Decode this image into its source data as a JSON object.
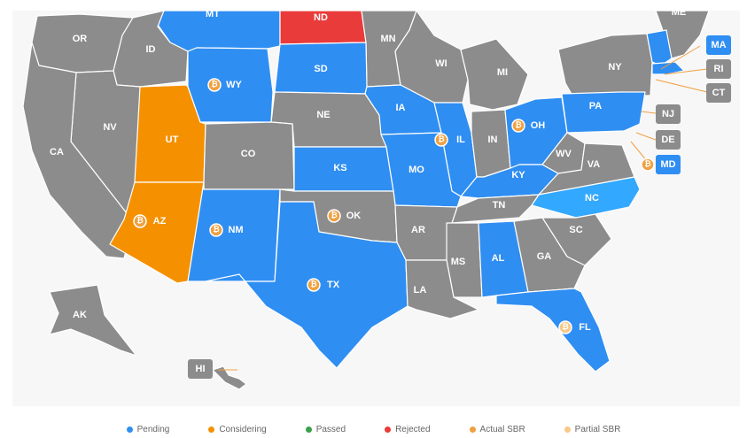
{
  "colors": {
    "pending": "#2f8ef2",
    "considering": "#f59100",
    "passed": "#3aa04a",
    "rejected": "#ea3b3b",
    "none": "#8c8c8c",
    "nc": "#33a8ff",
    "actual_sbr": "#f0a040",
    "partial_sbr": "#f7c889"
  },
  "states": [
    {
      "abbr": "MT",
      "status": "pending"
    },
    {
      "abbr": "ND",
      "status": "rejected"
    },
    {
      "abbr": "OR",
      "status": "none"
    },
    {
      "abbr": "ID",
      "status": "none"
    },
    {
      "abbr": "MN",
      "status": "none"
    },
    {
      "abbr": "WI",
      "status": "none"
    },
    {
      "abbr": "MI",
      "status": "none"
    },
    {
      "abbr": "NY",
      "status": "none"
    },
    {
      "abbr": "WY",
      "status": "pending",
      "sbr": "actual"
    },
    {
      "abbr": "SD",
      "status": "pending"
    },
    {
      "abbr": "NV",
      "status": "none"
    },
    {
      "abbr": "UT",
      "status": "considering"
    },
    {
      "abbr": "NE",
      "status": "none"
    },
    {
      "abbr": "IA",
      "status": "pending"
    },
    {
      "abbr": "IL",
      "status": "pending",
      "sbr": "actual"
    },
    {
      "abbr": "IN",
      "status": "none"
    },
    {
      "abbr": "OH",
      "status": "pending",
      "sbr": "actual"
    },
    {
      "abbr": "PA",
      "status": "pending"
    },
    {
      "abbr": "CA",
      "status": "none"
    },
    {
      "abbr": "CO",
      "status": "none"
    },
    {
      "abbr": "KS",
      "status": "pending"
    },
    {
      "abbr": "MO",
      "status": "pending"
    },
    {
      "abbr": "KY",
      "status": "pending"
    },
    {
      "abbr": "WV",
      "status": "none"
    },
    {
      "abbr": "VA",
      "status": "none"
    },
    {
      "abbr": "NC",
      "status": "nc"
    },
    {
      "abbr": "AZ",
      "status": "considering",
      "sbr": "actual"
    },
    {
      "abbr": "NM",
      "status": "pending",
      "sbr": "actual"
    },
    {
      "abbr": "OK",
      "status": "none",
      "sbr": "actual"
    },
    {
      "abbr": "TN",
      "status": "none"
    },
    {
      "abbr": "AR",
      "status": "none"
    },
    {
      "abbr": "SC",
      "status": "none"
    },
    {
      "abbr": "MS",
      "status": "none"
    },
    {
      "abbr": "AL",
      "status": "pending"
    },
    {
      "abbr": "GA",
      "status": "none"
    },
    {
      "abbr": "TX",
      "status": "pending",
      "sbr": "actual"
    },
    {
      "abbr": "LA",
      "status": "none"
    },
    {
      "abbr": "FL",
      "status": "pending",
      "sbr": "partial"
    },
    {
      "abbr": "AK",
      "status": "none"
    },
    {
      "abbr": "HI",
      "status": "none"
    },
    {
      "abbr": "ME",
      "status": "none"
    }
  ],
  "boxed_states": [
    {
      "abbr": "MA",
      "status": "pending"
    },
    {
      "abbr": "RI",
      "status": "none"
    },
    {
      "abbr": "CT",
      "status": "none"
    },
    {
      "abbr": "NJ",
      "status": "none"
    },
    {
      "abbr": "DE",
      "status": "none"
    },
    {
      "abbr": "MD",
      "status": "pending",
      "sbr": "actual"
    },
    {
      "abbr": "HI",
      "status": "none"
    }
  ],
  "legend": [
    {
      "label": "Pending",
      "color": "#2f8ef2",
      "shape": "dot"
    },
    {
      "label": "Considering",
      "color": "#f59100",
      "shape": "dot"
    },
    {
      "label": "Passed",
      "color": "#3aa04a",
      "shape": "dot"
    },
    {
      "label": "Rejected",
      "color": "#ea3b3b",
      "shape": "dot"
    },
    {
      "label": "Actual SBR",
      "color": "#f0a040",
      "shape": "hex"
    },
    {
      "label": "Partial SBR",
      "color": "#f7c889",
      "shape": "hex"
    }
  ],
  "btc_glyph": "₿"
}
